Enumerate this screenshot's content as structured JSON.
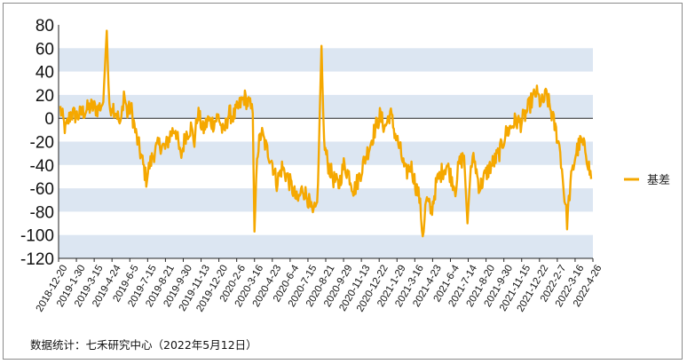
{
  "chart_data": {
    "type": "line",
    "title": "",
    "xlabel": "",
    "ylabel": "",
    "ylim": [
      -120,
      80
    ],
    "yticks": [
      80,
      60,
      40,
      20,
      0,
      -20,
      -40,
      -60,
      -80,
      -100,
      -120
    ],
    "x_tick_labels": [
      "2018-12-20",
      "2019-1-30",
      "2019-3-15",
      "2019-4-24",
      "2019-6-5",
      "2019-7-15",
      "2019-8-21",
      "2019-9-30",
      "2019-11-13",
      "2019-12-20",
      "2020-2-6",
      "2020-3-16",
      "2020-4-23",
      "2020-6-4",
      "2020-7-15",
      "2020-8-21",
      "2020-9-29",
      "2020-11-13",
      "2020-12-22",
      "2021-1-29",
      "2021-3-16",
      "2021-4-23",
      "2021-6-4",
      "2021-7-14",
      "2021-8-20",
      "2021-9-30",
      "2021-11-15",
      "2021-12-22",
      "2022-2-7",
      "2022-3-16",
      "2022-4-26"
    ],
    "grid": "alternating horizontal bands",
    "legend_position": "right",
    "series": [
      {
        "name": "基差",
        "color": "#f5a800",
        "anchors": [
          [
            0.0,
            8
          ],
          [
            0.3,
            -10
          ],
          [
            0.6,
            4
          ],
          [
            1.0,
            2
          ],
          [
            1.4,
            6
          ],
          [
            1.8,
            10
          ],
          [
            2.2,
            8
          ],
          [
            2.5,
            14
          ],
          [
            2.7,
            75
          ],
          [
            2.85,
            6
          ],
          [
            3.0,
            12
          ],
          [
            3.3,
            4
          ],
          [
            3.5,
            -8
          ],
          [
            3.7,
            22
          ],
          [
            3.9,
            4
          ],
          [
            4.1,
            10
          ],
          [
            4.4,
            -14
          ],
          [
            4.7,
            -32
          ],
          [
            5.0,
            -52
          ],
          [
            5.2,
            -40
          ],
          [
            5.5,
            -28
          ],
          [
            5.8,
            -22
          ],
          [
            6.1,
            -26
          ],
          [
            6.4,
            -14
          ],
          [
            6.7,
            -8
          ],
          [
            7.0,
            -34
          ],
          [
            7.3,
            -14
          ],
          [
            7.6,
            -8
          ],
          [
            7.8,
            -20
          ],
          [
            8.0,
            5
          ],
          [
            8.3,
            -10
          ],
          [
            8.6,
            -2
          ],
          [
            8.9,
            -4
          ],
          [
            9.2,
            2
          ],
          [
            9.5,
            -14
          ],
          [
            9.8,
            4
          ],
          [
            10.1,
            2
          ],
          [
            10.4,
            10
          ],
          [
            10.7,
            18
          ],
          [
            11.0,
            12
          ],
          [
            11.2,
            4
          ],
          [
            11.3,
            -97
          ],
          [
            11.45,
            -30
          ],
          [
            11.7,
            -12
          ],
          [
            12.0,
            -26
          ],
          [
            12.3,
            -36
          ],
          [
            12.6,
            -55
          ],
          [
            12.9,
            -42
          ],
          [
            13.2,
            -50
          ],
          [
            13.5,
            -60
          ],
          [
            13.8,
            -72
          ],
          [
            14.1,
            -60
          ],
          [
            14.4,
            -68
          ],
          [
            14.7,
            -84
          ],
          [
            14.9,
            -76
          ],
          [
            15.0,
            -56
          ],
          [
            15.2,
            62
          ],
          [
            15.35,
            -22
          ],
          [
            15.6,
            -40
          ],
          [
            15.9,
            -52
          ],
          [
            16.2,
            -58
          ],
          [
            16.5,
            -40
          ],
          [
            16.8,
            -48
          ],
          [
            17.1,
            -62
          ],
          [
            17.4,
            -50
          ],
          [
            17.7,
            -36
          ],
          [
            18.0,
            -24
          ],
          [
            18.3,
            -10
          ],
          [
            18.6,
            2
          ],
          [
            18.9,
            -8
          ],
          [
            19.2,
            5
          ],
          [
            19.5,
            -14
          ],
          [
            19.8,
            -28
          ],
          [
            20.1,
            -48
          ],
          [
            20.4,
            -40
          ],
          [
            20.7,
            -58
          ],
          [
            20.9,
            -68
          ],
          [
            21.1,
            -100
          ],
          [
            21.3,
            -70
          ],
          [
            21.6,
            -80
          ],
          [
            21.9,
            -55
          ],
          [
            22.2,
            -46
          ],
          [
            22.5,
            -40
          ],
          [
            22.8,
            -52
          ],
          [
            23.0,
            -60
          ],
          [
            23.2,
            -40
          ],
          [
            23.5,
            -32
          ],
          [
            23.7,
            -90
          ],
          [
            23.9,
            -40
          ],
          [
            24.1,
            -35
          ],
          [
            24.4,
            -60
          ],
          [
            24.7,
            -50
          ],
          [
            25.0,
            -42
          ],
          [
            25.3,
            -36
          ],
          [
            25.6,
            -28
          ],
          [
            25.9,
            -14
          ],
          [
            26.2,
            -8
          ],
          [
            26.5,
            -2
          ],
          [
            26.8,
            -4
          ],
          [
            27.1,
            4
          ],
          [
            27.4,
            14
          ],
          [
            27.7,
            22
          ],
          [
            28.0,
            12
          ],
          [
            28.3,
            20
          ],
          [
            28.6,
            4
          ],
          [
            28.9,
            -14
          ],
          [
            29.1,
            -28
          ],
          [
            29.3,
            -60
          ],
          [
            29.5,
            -88
          ],
          [
            29.7,
            -56
          ],
          [
            30.0,
            -30
          ],
          [
            30.3,
            -20
          ],
          [
            30.6,
            -28
          ],
          [
            30.9,
            -52
          ]
        ]
      }
    ]
  },
  "legend": {
    "label": "基差"
  },
  "source_note": "数据统计：七禾研究中心（2022年5月12日）"
}
